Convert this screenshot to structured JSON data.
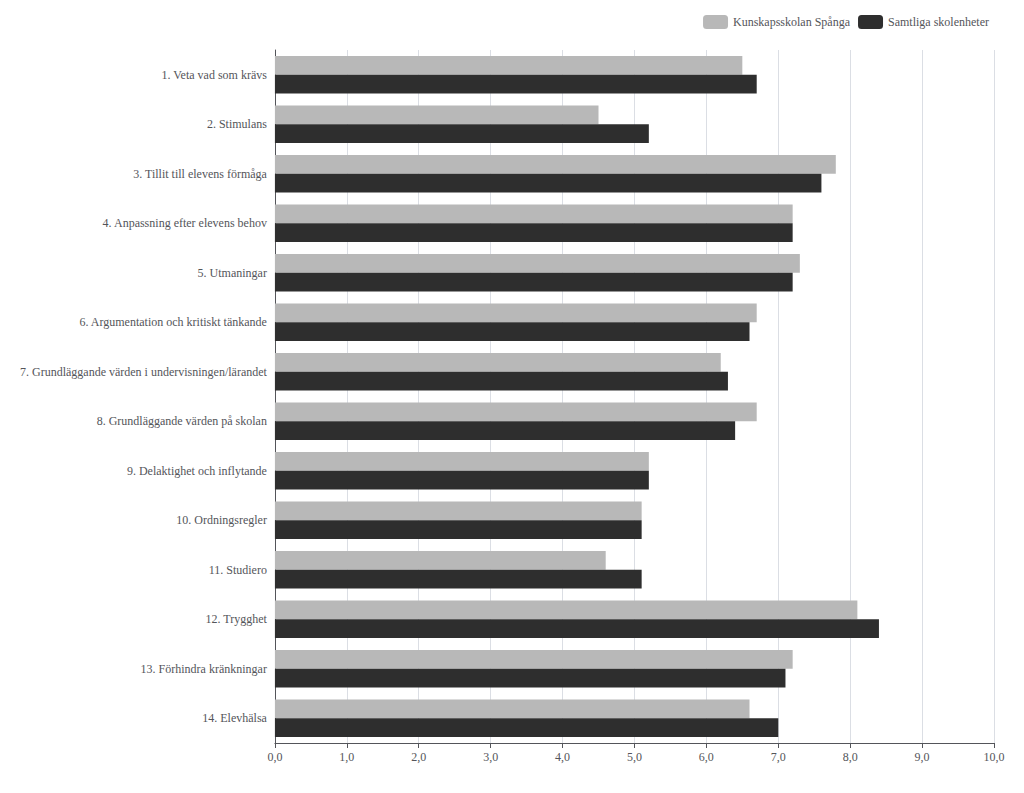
{
  "chart_data": {
    "type": "bar",
    "orientation": "horizontal",
    "categories": [
      "1. Veta vad som krävs",
      "2. Stimulans",
      "3. Tillit till elevens förmåga",
      "4. Anpassning efter elevens behov",
      "5. Utmaningar",
      "6. Argumentation och kritiskt tänkande",
      "7. Grundläggande värden i undervisningen/lärandet",
      "8. Grundläggande värden på skolan",
      "9. Delaktighet och inflytande",
      "10. Ordningsregler",
      "11. Studiero",
      "12. Trygghet",
      "13. Förhindra kränkningar",
      "14. Elevhälsa"
    ],
    "series": [
      {
        "name": "Kunskapsskolan Spånga",
        "color": "#b8b8b8",
        "values": [
          6.5,
          4.5,
          7.8,
          7.2,
          7.3,
          6.7,
          6.2,
          6.7,
          5.2,
          5.1,
          4.6,
          8.1,
          7.2,
          6.6
        ]
      },
      {
        "name": "Samtliga skolenheter",
        "color": "#2e2e2e",
        "values": [
          6.7,
          5.2,
          7.6,
          7.2,
          7.2,
          6.6,
          6.3,
          6.4,
          5.2,
          5.1,
          5.1,
          8.4,
          7.1,
          7.0
        ]
      }
    ],
    "xlim": [
      0,
      10
    ],
    "xticks": [
      {
        "value": 0,
        "label": "0,0"
      },
      {
        "value": 1,
        "label": "1,0"
      },
      {
        "value": 2,
        "label": "2,0"
      },
      {
        "value": 3,
        "label": "3,0"
      },
      {
        "value": 4,
        "label": "4,0"
      },
      {
        "value": 5,
        "label": "5,0"
      },
      {
        "value": 6,
        "label": "6,0"
      },
      {
        "value": 7,
        "label": "7,0"
      },
      {
        "value": 8,
        "label": "8,0"
      },
      {
        "value": 9,
        "label": "9,0"
      },
      {
        "value": 10,
        "label": "10,0"
      }
    ],
    "grid": true,
    "legend": "upper right"
  }
}
